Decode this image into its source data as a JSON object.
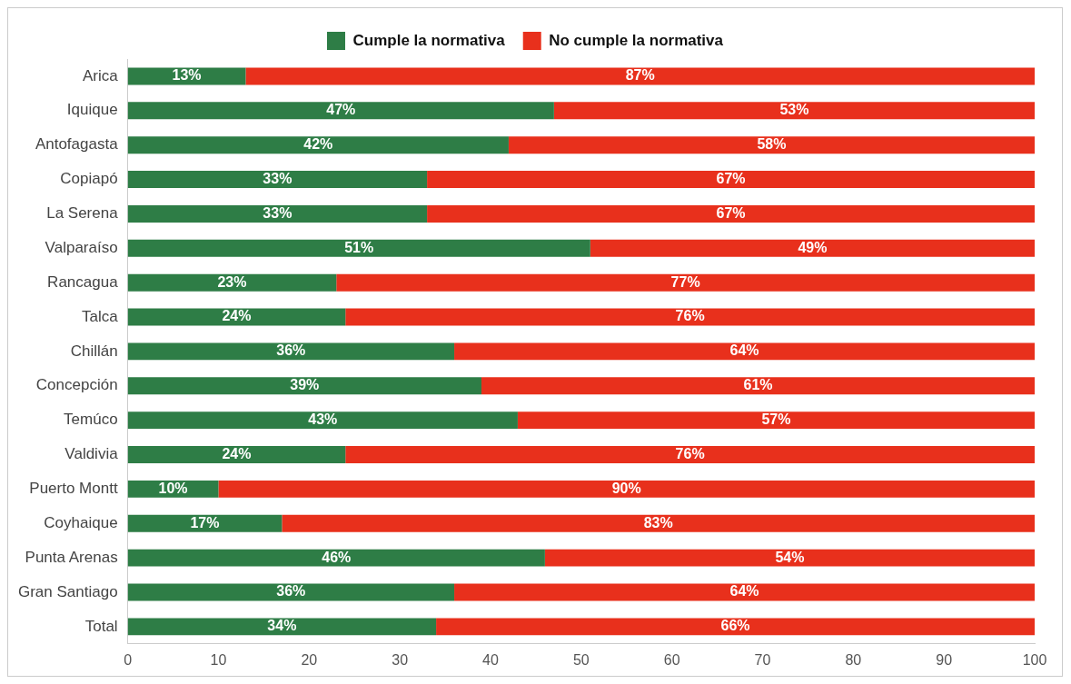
{
  "chart_data": {
    "type": "bar",
    "orientation": "horizontal",
    "stacked": true,
    "legend": "top",
    "categories": [
      "Arica",
      "Iquique",
      "Antofagasta",
      "Copiapó",
      "La Serena",
      "Valparaíso",
      "Rancagua",
      "Talca",
      "Chillán",
      "Concepción",
      "Temúco",
      "Valdivia",
      "Puerto Montt",
      "Coyhaique",
      "Punta Arenas",
      "Gran Santiago",
      "Total"
    ],
    "series": [
      {
        "name": "Cumple la normativa",
        "color": "#2e7d46",
        "values": [
          13,
          47,
          42,
          33,
          33,
          51,
          23,
          24,
          36,
          39,
          43,
          24,
          10,
          17,
          46,
          36,
          34
        ],
        "value_labels": [
          "13%",
          "47%",
          "42%",
          "33%",
          "33%",
          "51%",
          "23%",
          "24%",
          "36%",
          "39%",
          "43%",
          "24%",
          "10%",
          "17%",
          "46%",
          "36%",
          "34%"
        ]
      },
      {
        "name": "No cumple la normativa",
        "color": "#e8301c",
        "values": [
          87,
          53,
          58,
          67,
          67,
          49,
          77,
          76,
          64,
          61,
          57,
          76,
          90,
          83,
          54,
          64,
          66
        ],
        "value_labels": [
          "87%",
          "53%",
          "58%",
          "67%",
          "67%",
          "49%",
          "77%",
          "76%",
          "64%",
          "61%",
          "57%",
          "76%",
          "90%",
          "83%",
          "54%",
          "64%",
          "66%"
        ]
      }
    ],
    "xlim": [
      0,
      100
    ],
    "xticks": [
      0,
      10,
      20,
      30,
      40,
      50,
      60,
      70,
      80,
      90,
      100
    ]
  }
}
